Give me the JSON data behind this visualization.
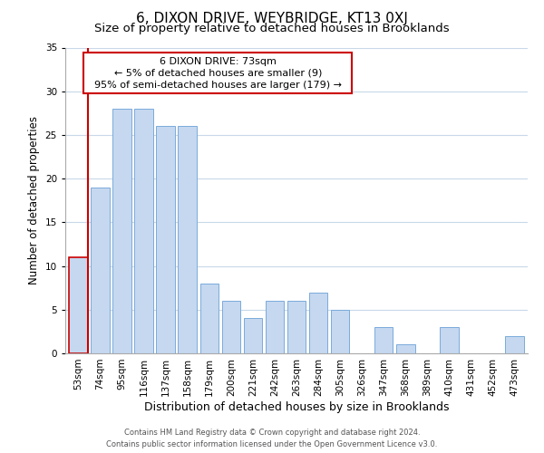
{
  "title": "6, DIXON DRIVE, WEYBRIDGE, KT13 0XJ",
  "subtitle": "Size of property relative to detached houses in Brooklands",
  "xlabel": "Distribution of detached houses by size in Brooklands",
  "ylabel": "Number of detached properties",
  "categories": [
    "53sqm",
    "74sqm",
    "95sqm",
    "116sqm",
    "137sqm",
    "158sqm",
    "179sqm",
    "200sqm",
    "221sqm",
    "242sqm",
    "263sqm",
    "284sqm",
    "305sqm",
    "326sqm",
    "347sqm",
    "368sqm",
    "389sqm",
    "410sqm",
    "431sqm",
    "452sqm",
    "473sqm"
  ],
  "values": [
    11,
    19,
    28,
    28,
    26,
    26,
    8,
    6,
    4,
    6,
    6,
    7,
    5,
    0,
    3,
    1,
    0,
    3,
    0,
    0,
    2
  ],
  "bar_color": "#c5d8f0",
  "bar_edge_color": "#7aabdb",
  "highlight_bar_index": 0,
  "highlight_edge_color": "#cc0000",
  "annotation_title": "6 DIXON DRIVE: 73sqm",
  "annotation_line1": "← 5% of detached houses are smaller (9)",
  "annotation_line2": "95% of semi-detached houses are larger (179) →",
  "annotation_box_color": "#ffffff",
  "annotation_box_edge_color": "#cc0000",
  "vertical_line_color": "#cc0000",
  "ylim": [
    0,
    35
  ],
  "yticks": [
    0,
    5,
    10,
    15,
    20,
    25,
    30,
    35
  ],
  "footer_line1": "Contains HM Land Registry data © Crown copyright and database right 2024.",
  "footer_line2": "Contains public sector information licensed under the Open Government Licence v3.0.",
  "bg_color": "#ffffff",
  "grid_color": "#c8d8e8",
  "title_fontsize": 11,
  "subtitle_fontsize": 9.5,
  "tick_fontsize": 7.5,
  "ylabel_fontsize": 8.5,
  "xlabel_fontsize": 9,
  "annotation_fontsize": 8,
  "footer_fontsize": 6
}
